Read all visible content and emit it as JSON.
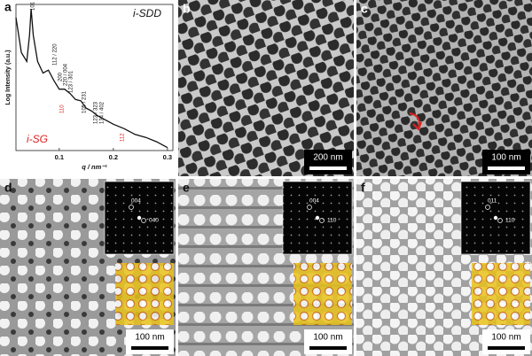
{
  "chart_data": {
    "type": "line",
    "label": "a",
    "xlabel": "q / nm⁻¹",
    "ylabel": "Log Intensity (a.u.)",
    "x": [
      0.02,
      0.03,
      0.04,
      0.045,
      0.048,
      0.052,
      0.06,
      0.07,
      0.08,
      0.09,
      0.1,
      0.11,
      0.12,
      0.13,
      0.14,
      0.15,
      0.16,
      0.17,
      0.18,
      0.2,
      0.22,
      0.24,
      0.26,
      0.28,
      0.3
    ],
    "values": [
      91,
      67,
      61,
      79,
      97,
      79,
      61,
      53,
      55,
      48,
      42,
      42,
      39,
      35,
      34,
      29,
      27,
      24,
      22,
      18,
      15,
      11,
      9,
      6,
      2
    ],
    "color": "#111111",
    "xlim": [
      0.02,
      0.31
    ],
    "ylim": [
      0,
      100
    ],
    "xticks": [
      0.1,
      0.2,
      0.3
    ],
    "annotations": [
      {
        "text": "i-SDD",
        "color": "#111111"
      },
      {
        "text": "i-SG",
        "color": "#e02020"
      },
      {
        "text": "101",
        "color": "#111111"
      },
      {
        "text": "112 / 220",
        "color": "#111111"
      },
      {
        "text": "200",
        "color": "#111111"
      },
      {
        "text": "220 / 004",
        "color": "#111111"
      },
      {
        "text": "123 / 301",
        "color": "#111111"
      },
      {
        "text": "110",
        "color": "#e02020"
      },
      {
        "text": "105 / 231",
        "color": "#111111"
      },
      {
        "text": "123 / 323",
        "color": "#111111"
      },
      {
        "text": "134 / 402",
        "color": "#111111"
      },
      {
        "text": "112",
        "color": "#e02020"
      }
    ]
  },
  "panels": [
    {
      "label": "b",
      "scale_bar": "200 nm"
    },
    {
      "label": "c",
      "scale_bar": "100 nm"
    },
    {
      "label": "d",
      "scale_bar": "100 nm",
      "fft_labels": [
        "004",
        "040"
      ]
    },
    {
      "label": "e",
      "scale_bar": "100 nm",
      "fft_labels": [
        "004",
        "110"
      ]
    },
    {
      "label": "f",
      "scale_bar": "100 nm",
      "fft_labels": [
        "011",
        "110"
      ]
    }
  ]
}
